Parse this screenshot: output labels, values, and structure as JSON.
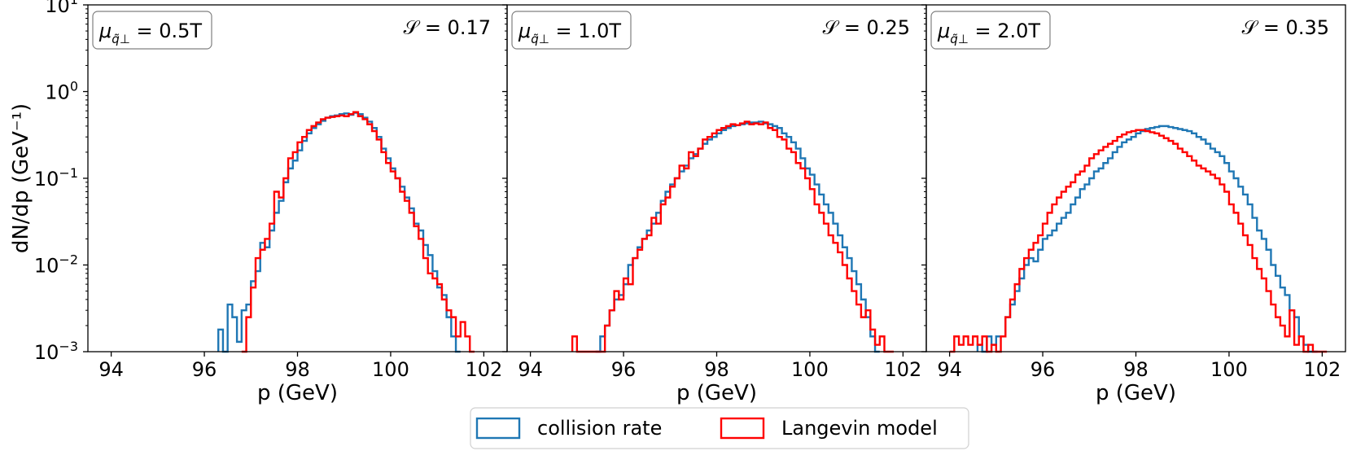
{
  "figure": {
    "ylabel": "dN/dp (GeV⁻¹)",
    "xlabel": "p (GeV)"
  },
  "legend": {
    "items": [
      {
        "label": "collision rate",
        "color": "#1f77b4"
      },
      {
        "label": "Langevin model",
        "color": "#ff0000"
      }
    ]
  },
  "chart_data": [
    {
      "type": "step",
      "title": "",
      "xlabel": "p (GeV)",
      "ylabel": "dN/dp (GeV⁻¹)",
      "xlim": [
        93.5,
        102.5
      ],
      "ylim": [
        0.001,
        10
      ],
      "yscale": "log",
      "xticks": [
        94,
        96,
        98,
        100,
        102
      ],
      "annotation_left": "μ̃ = 0.5T",
      "annotation_param": "0.5T",
      "annotation_right": "𝒮 = 0.17",
      "series": [
        {
          "name": "collision rate",
          "color": "#1f77b4",
          "x": [
            96.3,
            96.4,
            96.5,
            96.6,
            96.7,
            96.8,
            96.9,
            97.0,
            97.1,
            97.2,
            97.3,
            97.4,
            97.5,
            97.6,
            97.7,
            97.8,
            97.9,
            98.0,
            98.1,
            98.2,
            98.3,
            98.4,
            98.5,
            98.6,
            98.7,
            98.8,
            98.9,
            99.0,
            99.1,
            99.2,
            99.3,
            99.4,
            99.5,
            99.6,
            99.7,
            99.8,
            99.9,
            100.0,
            100.1,
            100.2,
            100.3,
            100.4,
            100.5,
            100.6,
            100.7,
            100.8,
            100.9,
            101.0,
            101.1,
            101.2,
            101.3,
            101.4
          ],
          "y": [
            0.0018,
            0.001,
            0.0035,
            0.0025,
            0.0013,
            0.003,
            0.0035,
            0.0065,
            0.0085,
            0.018,
            0.016,
            0.025,
            0.04,
            0.055,
            0.09,
            0.13,
            0.16,
            0.21,
            0.27,
            0.33,
            0.38,
            0.42,
            0.46,
            0.5,
            0.52,
            0.53,
            0.55,
            0.56,
            0.54,
            0.57,
            0.55,
            0.5,
            0.45,
            0.38,
            0.3,
            0.22,
            0.17,
            0.13,
            0.1,
            0.08,
            0.06,
            0.045,
            0.03,
            0.025,
            0.017,
            0.013,
            0.0085,
            0.0055,
            0.0045,
            0.0025,
            0.0015,
            0.001
          ],
          "x_end": 101.5
        },
        {
          "name": "Langevin model",
          "color": "#ff0000",
          "x": [
            96.8,
            96.9,
            97.0,
            97.1,
            97.2,
            97.3,
            97.4,
            97.5,
            97.6,
            97.7,
            97.8,
            97.9,
            98.0,
            98.1,
            98.2,
            98.3,
            98.4,
            98.5,
            98.6,
            98.7,
            98.8,
            98.9,
            99.0,
            99.1,
            99.2,
            99.3,
            99.4,
            99.5,
            99.6,
            99.7,
            99.8,
            99.9,
            100.0,
            100.1,
            100.2,
            100.3,
            100.4,
            100.5,
            100.6,
            100.7,
            100.8,
            100.9,
            101.0,
            101.1,
            101.2,
            101.3,
            101.4,
            101.5,
            101.6,
            101.7
          ],
          "y": [
            0.001,
            0.0025,
            0.0055,
            0.012,
            0.015,
            0.02,
            0.03,
            0.07,
            0.06,
            0.1,
            0.17,
            0.2,
            0.26,
            0.3,
            0.36,
            0.4,
            0.44,
            0.48,
            0.5,
            0.51,
            0.52,
            0.53,
            0.52,
            0.55,
            0.58,
            0.52,
            0.48,
            0.42,
            0.35,
            0.28,
            0.2,
            0.15,
            0.12,
            0.1,
            0.07,
            0.055,
            0.04,
            0.028,
            0.02,
            0.012,
            0.008,
            0.007,
            0.006,
            0.004,
            0.003,
            0.0025,
            0.0015,
            0.0022,
            0.0015,
            0.001
          ],
          "x_end": 101.8
        }
      ]
    },
    {
      "type": "step",
      "title": "",
      "xlabel": "p (GeV)",
      "ylabel": "",
      "xlim": [
        93.5,
        102.5
      ],
      "ylim": [
        0.001,
        10
      ],
      "yscale": "log",
      "xticks": [
        94,
        96,
        98,
        100,
        102
      ],
      "annotation_left": "μ̃ = 1.0T",
      "annotation_param": "1.0T",
      "annotation_right": "𝒮 = 0.25",
      "series": [
        {
          "name": "collision rate",
          "color": "#1f77b4",
          "x": [
            95.4,
            95.5,
            95.6,
            95.7,
            95.8,
            95.9,
            96.0,
            96.1,
            96.2,
            96.3,
            96.4,
            96.5,
            96.6,
            96.7,
            96.8,
            96.9,
            97.0,
            97.1,
            97.2,
            97.3,
            97.4,
            97.5,
            97.6,
            97.7,
            97.8,
            97.9,
            98.0,
            98.1,
            98.2,
            98.3,
            98.4,
            98.5,
            98.6,
            98.7,
            98.8,
            98.9,
            99.0,
            99.1,
            99.2,
            99.3,
            99.4,
            99.5,
            99.6,
            99.7,
            99.8,
            99.9,
            100.0,
            100.1,
            100.2,
            100.3,
            100.4,
            100.5,
            100.6,
            100.7,
            100.8,
            100.9,
            101.0,
            101.1,
            101.2,
            101.3,
            101.4
          ],
          "y": [
            0.001,
            0.0015,
            0.002,
            0.003,
            0.004,
            0.0045,
            0.006,
            0.01,
            0.012,
            0.016,
            0.02,
            0.025,
            0.03,
            0.04,
            0.055,
            0.07,
            0.085,
            0.1,
            0.12,
            0.14,
            0.17,
            0.19,
            0.22,
            0.25,
            0.28,
            0.3,
            0.33,
            0.36,
            0.38,
            0.4,
            0.41,
            0.42,
            0.43,
            0.44,
            0.44,
            0.45,
            0.43,
            0.42,
            0.4,
            0.38,
            0.33,
            0.3,
            0.26,
            0.22,
            0.17,
            0.13,
            0.11,
            0.085,
            0.065,
            0.05,
            0.04,
            0.03,
            0.022,
            0.016,
            0.012,
            0.0085,
            0.006,
            0.004,
            0.0025,
            0.0015,
            0.001
          ],
          "x_end": 101.5
        },
        {
          "name": "Langevin model",
          "color": "#ff0000",
          "x": [
            94.9,
            95.0,
            95.5,
            95.6,
            95.7,
            95.8,
            95.9,
            96.0,
            96.1,
            96.2,
            96.3,
            96.4,
            96.5,
            96.6,
            96.7,
            96.8,
            96.9,
            97.0,
            97.1,
            97.2,
            97.3,
            97.4,
            97.5,
            97.6,
            97.7,
            97.8,
            97.9,
            98.0,
            98.1,
            98.2,
            98.3,
            98.4,
            98.5,
            98.6,
            98.7,
            98.8,
            98.9,
            99.0,
            99.1,
            99.2,
            99.3,
            99.4,
            99.5,
            99.6,
            99.7,
            99.8,
            99.9,
            100.0,
            100.1,
            100.2,
            100.3,
            100.4,
            100.5,
            100.6,
            100.7,
            100.8,
            100.9,
            101.0,
            101.1,
            101.2,
            101.3,
            101.4,
            101.5,
            101.6,
            101.7
          ],
          "y": [
            0.0015,
            0.001,
            0.001,
            0.002,
            0.003,
            0.005,
            0.004,
            0.007,
            0.006,
            0.012,
            0.015,
            0.02,
            0.022,
            0.035,
            0.03,
            0.05,
            0.06,
            0.08,
            0.1,
            0.14,
            0.13,
            0.2,
            0.18,
            0.22,
            0.28,
            0.3,
            0.33,
            0.36,
            0.38,
            0.4,
            0.42,
            0.41,
            0.43,
            0.45,
            0.42,
            0.43,
            0.42,
            0.44,
            0.38,
            0.36,
            0.3,
            0.28,
            0.22,
            0.2,
            0.15,
            0.13,
            0.1,
            0.075,
            0.05,
            0.04,
            0.03,
            0.022,
            0.018,
            0.014,
            0.01,
            0.007,
            0.005,
            0.0035,
            0.0025,
            0.003,
            0.0018,
            0.0012,
            0.0015,
            0.001,
            0.001
          ],
          "x_end": 101.8
        }
      ]
    },
    {
      "type": "step",
      "title": "",
      "xlabel": "p (GeV)",
      "ylabel": "",
      "xlim": [
        93.5,
        102.5
      ],
      "ylim": [
        0.001,
        10
      ],
      "yscale": "log",
      "xticks": [
        94,
        96,
        98,
        100,
        102
      ],
      "annotation_left": "μ̃ = 2.0T",
      "annotation_param": "2.0T",
      "annotation_right": "𝒮 = 0.35",
      "series": [
        {
          "name": "collision rate",
          "color": "#1f77b4",
          "x": [
            94.6,
            94.7,
            94.8,
            94.9,
            95.0,
            95.1,
            95.2,
            95.3,
            95.4,
            95.5,
            95.6,
            95.7,
            95.8,
            95.9,
            96.0,
            96.1,
            96.2,
            96.3,
            96.4,
            96.5,
            96.6,
            96.7,
            96.8,
            96.9,
            97.0,
            97.1,
            97.2,
            97.3,
            97.4,
            97.5,
            97.6,
            97.7,
            97.8,
            97.9,
            98.0,
            98.1,
            98.2,
            98.3,
            98.4,
            98.5,
            98.6,
            98.7,
            98.8,
            98.9,
            99.0,
            99.1,
            99.2,
            99.3,
            99.4,
            99.5,
            99.6,
            99.7,
            99.8,
            99.9,
            100.0,
            100.1,
            100.2,
            100.3,
            100.4,
            100.5,
            100.6,
            100.7,
            100.8,
            100.9,
            101.0,
            101.1,
            101.2,
            101.3,
            101.4,
            101.5,
            101.6,
            101.7,
            101.8
          ],
          "y": [
            0.0012,
            0.001,
            0.0015,
            0.0012,
            0.0015,
            0.0015,
            0.0025,
            0.0035,
            0.005,
            0.007,
            0.01,
            0.012,
            0.011,
            0.015,
            0.02,
            0.022,
            0.025,
            0.03,
            0.035,
            0.04,
            0.05,
            0.06,
            0.075,
            0.085,
            0.1,
            0.12,
            0.13,
            0.15,
            0.17,
            0.2,
            0.23,
            0.26,
            0.28,
            0.3,
            0.33,
            0.35,
            0.37,
            0.38,
            0.39,
            0.4,
            0.4,
            0.39,
            0.38,
            0.37,
            0.36,
            0.35,
            0.33,
            0.3,
            0.28,
            0.25,
            0.22,
            0.2,
            0.18,
            0.15,
            0.12,
            0.1,
            0.08,
            0.065,
            0.05,
            0.035,
            0.025,
            0.02,
            0.015,
            0.01,
            0.0075,
            0.0055,
            0.0045,
            0.003,
            0.0025,
            0.0015,
            0.0012,
            0.001,
            0.001
          ],
          "x_end": 101.9
        },
        {
          "name": "Langevin model",
          "color": "#ff0000",
          "x": [
            94.0,
            94.1,
            94.2,
            94.3,
            94.4,
            94.5,
            94.6,
            94.7,
            94.8,
            94.9,
            95.0,
            95.1,
            95.2,
            95.3,
            95.4,
            95.5,
            95.6,
            95.7,
            95.8,
            95.9,
            96.0,
            96.1,
            96.2,
            96.3,
            96.4,
            96.5,
            96.6,
            96.7,
            96.8,
            96.9,
            97.0,
            97.1,
            97.2,
            97.3,
            97.4,
            97.5,
            97.6,
            97.7,
            97.8,
            97.9,
            98.0,
            98.1,
            98.2,
            98.3,
            98.4,
            98.5,
            98.6,
            98.7,
            98.8,
            98.9,
            99.0,
            99.1,
            99.2,
            99.3,
            99.4,
            99.5,
            99.6,
            99.7,
            99.8,
            99.9,
            100.0,
            100.1,
            100.2,
            100.3,
            100.4,
            100.5,
            100.6,
            100.7,
            100.8,
            100.9,
            101.0,
            101.1,
            101.2,
            101.3,
            101.4,
            101.5,
            101.6,
            101.7,
            101.8,
            101.9,
            102.0
          ],
          "y": [
            0.001,
            0.0015,
            0.0012,
            0.0015,
            0.0012,
            0.0015,
            0.0012,
            0.0015,
            0.001,
            0.0012,
            0.001,
            0.0015,
            0.0025,
            0.004,
            0.006,
            0.009,
            0.012,
            0.015,
            0.018,
            0.022,
            0.03,
            0.04,
            0.05,
            0.06,
            0.07,
            0.08,
            0.09,
            0.11,
            0.12,
            0.14,
            0.17,
            0.19,
            0.21,
            0.23,
            0.25,
            0.27,
            0.3,
            0.32,
            0.34,
            0.35,
            0.36,
            0.36,
            0.35,
            0.34,
            0.33,
            0.31,
            0.29,
            0.27,
            0.25,
            0.22,
            0.2,
            0.18,
            0.16,
            0.14,
            0.13,
            0.12,
            0.11,
            0.1,
            0.085,
            0.07,
            0.05,
            0.04,
            0.03,
            0.022,
            0.017,
            0.012,
            0.009,
            0.007,
            0.005,
            0.0035,
            0.0025,
            0.002,
            0.0015,
            0.003,
            0.0012,
            0.0015,
            0.001,
            0.0012,
            0.001,
            0.001,
            0.001
          ],
          "x_end": 102.1
        }
      ]
    }
  ]
}
